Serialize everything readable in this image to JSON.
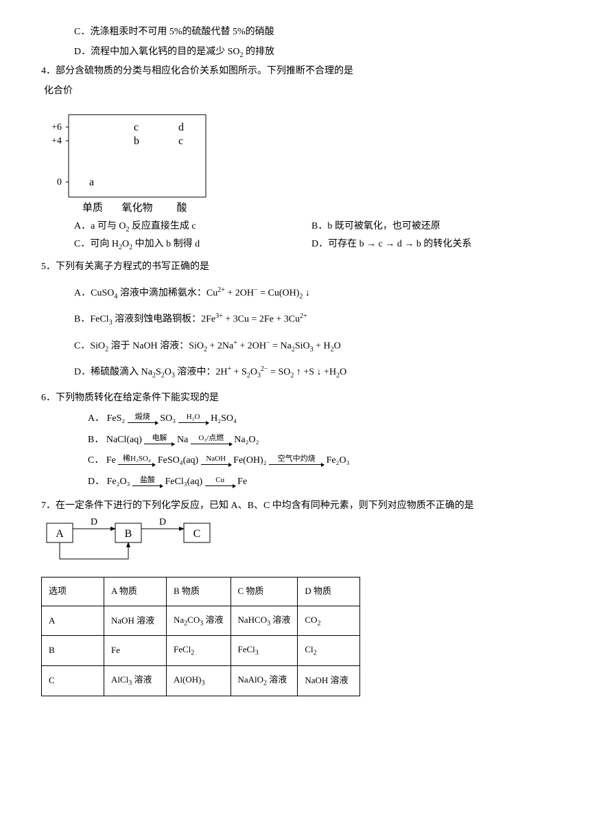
{
  "q3c": "C．洗涤粗汞时不可用 5%的硫酸代替 5%的硝酸",
  "q3d_pre": "D．流程中加入氧化钙的目的是减少 SO",
  "q3d_sub": "2",
  "q3d_post": " 的排放",
  "q4": {
    "stem": "4．部分含硫物质的分类与相应化合价关系如图所示。下列推断不合理的是",
    "chart": {
      "ylabel": "化合价",
      "xlabels": [
        "单质",
        "氧化物",
        "酸"
      ],
      "yticks": [
        "+6",
        "+4",
        "0"
      ],
      "points": {
        "a": "a",
        "b": "b",
        "c1": "c",
        "c2": "c",
        "d": "d"
      },
      "axis_color": "#000",
      "bg": "#fff",
      "font_size": 14
    },
    "optA_pre": "A．a 可与 O",
    "optA_sub": "2",
    "optA_post": " 反应直接生成 c",
    "optB": "B．b 既可被氧化，也可被还原",
    "optC_pre": "C．可向 H",
    "optC_sub1": "2",
    "optC_mid": "O",
    "optC_sub2": "2",
    "optC_post": " 中加入 b 制得 d",
    "optD": "D．可存在 b → c → d → b 的转化关系"
  },
  "q5": {
    "stem": "5．下列有关离子方程式的书写正确的是",
    "optA_html": "A．CuSO<sub>4</sub> 溶液中滴加稀氨水：Cu<sup>2+</sup> + 2OH<sup>−</sup> = Cu(OH)<sub>2</sub> ↓",
    "optB_html": "B．FeCl<sub>3</sub> 溶液刻蚀电路铜板：2Fe<sup>3+</sup> + 3Cu = 2Fe + 3Cu<sup>2+</sup>",
    "optC_html": "C．SiO<sub>2</sub> 溶于 NaOH 溶液：SiO<sub>2</sub> + 2Na<sup>+</sup> + 2OH<sup>−</sup> = Na<sub>2</sub>SiO<sub>3</sub> + H<sub>2</sub>O",
    "optD_html": "D．稀硫酸滴入 Na<sub>2</sub>S<sub>2</sub>O<sub>3</sub> 溶液中：2H<sup>+</sup> + S<sub>2</sub>O<sub>3</sub><sup>2−</sup> = SO<sub>2</sub> ↑ +S ↓ +H<sub>2</sub>O"
  },
  "q6": {
    "stem": "6．下列物质转化在给定条件下能实现的是",
    "A": {
      "p": "A．",
      "s1": "FeS₂",
      "l1": "煅烧",
      "s2": "SO₃",
      "l2": "H₂O",
      "s3": "H₂SO₄"
    },
    "B": {
      "p": "B．",
      "s1": "NaCl(aq)",
      "l1": "电解",
      "s2": "Na",
      "l2": "O₂/点燃",
      "s3": "Na₂O₂"
    },
    "C": {
      "p": "C．",
      "s1": "Fe",
      "l1": "稀H₂SO₄",
      "s2": "FeSO₄(aq)",
      "l2": "NaOH",
      "s3": "Fe(OH)₂",
      "l3": "空气中灼烧",
      "s4": "Fe₂O₃"
    },
    "D": {
      "p": "D．",
      "s1": "Fe₂O₃",
      "l1": "盐酸",
      "s2": "FeCl₃(aq)",
      "l2": "Cu",
      "s3": "Fe"
    }
  },
  "q7": {
    "stem": "7．在一定条件下进行的下列化学反应，已知 A、B、C 中均含有同种元素，则下列对应物质不正确的是",
    "diagram": {
      "A": "A",
      "B": "B",
      "C": "C",
      "D1": "D",
      "D2": "D"
    },
    "table": {
      "headers": [
        "选项",
        "A 物质",
        "B 物质",
        "C 物质",
        "D 物质"
      ],
      "rows": [
        [
          "A",
          "NaOH 溶液",
          "Na<sub>2</sub>CO<sub>3</sub> 溶液",
          "NaHCO<sub>3</sub> 溶液",
          "CO<sub>2</sub>"
        ],
        [
          "B",
          "Fe",
          "FeCl<sub>2</sub>",
          "FeCl<sub>3</sub>",
          "Cl<sub>2</sub>"
        ],
        [
          "C",
          "AlCl<sub>3</sub> 溶液",
          "Al(OH)<sub>3</sub>",
          "NaAlO<sub>2</sub> 溶液",
          "NaOH 溶液"
        ]
      ]
    }
  }
}
